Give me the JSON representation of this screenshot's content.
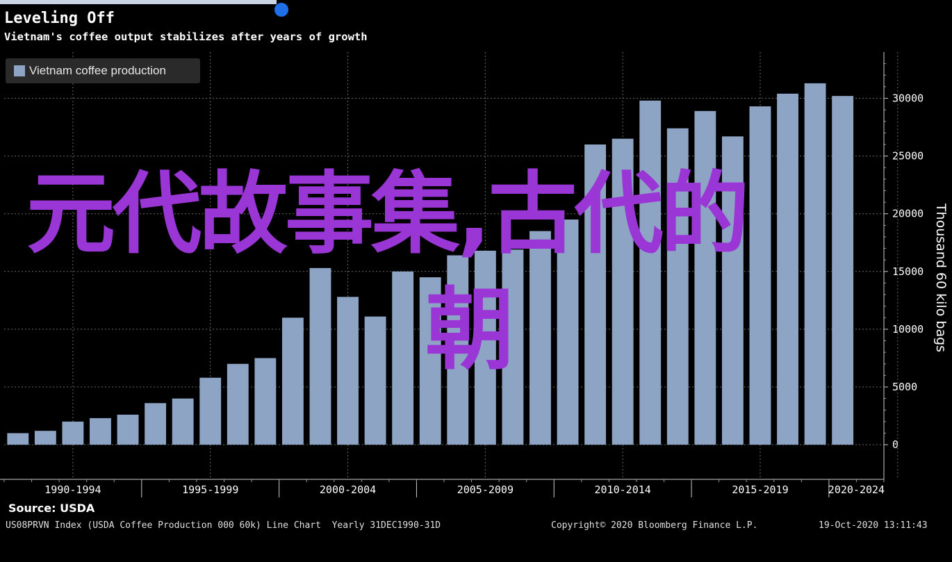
{
  "header": {
    "title": "Leveling Off",
    "subtitle": "Vietnam's coffee output stabilizes after years of growth"
  },
  "legend": {
    "label": "Vietnam coffee production",
    "color": "#8ea4c4"
  },
  "chart_data": {
    "type": "bar",
    "title": "Leveling Off",
    "subtitle": "Vietnam's coffee output stabilizes after years of growth",
    "ylabel": "Thousand 60 kilo bags",
    "ylim": [
      -3000,
      34000
    ],
    "yticks": [
      0,
      5000,
      10000,
      15000,
      20000,
      25000,
      30000
    ],
    "ytick_labels": [
      "0",
      "5000",
      "10000",
      "15000",
      "20000",
      "25000",
      "30000"
    ],
    "x_groups": [
      "1990-1994",
      "1995-1999",
      "2000-2004",
      "2005-2009",
      "2010-2014",
      "2015-2019",
      "2020-2024"
    ],
    "x": [
      1990,
      1991,
      1992,
      1993,
      1994,
      1995,
      1996,
      1997,
      1998,
      1999,
      2000,
      2001,
      2002,
      2003,
      2004,
      2005,
      2006,
      2007,
      2008,
      2009,
      2010,
      2011,
      2012,
      2013,
      2014,
      2015,
      2016,
      2017,
      2018,
      2019,
      2020,
      2021
    ],
    "series": [
      {
        "name": "Vietnam coffee production",
        "values": [
          1000,
          1200,
          2000,
          2300,
          2600,
          3600,
          4000,
          5800,
          7000,
          7500,
          11000,
          15300,
          12800,
          11100,
          15000,
          14500,
          16400,
          16800,
          16900,
          18500,
          19500,
          26000,
          26500,
          29800,
          27400,
          28900,
          26700,
          29300,
          30400,
          31300,
          30200,
          0
        ],
        "color": "#8ea4c4"
      }
    ],
    "grid": true,
    "legend_position": "top-left"
  },
  "overlay_text": {
    "line1": "元代故事集,古代的",
    "line2": "朝"
  },
  "footer": {
    "source": "Source: USDA",
    "index": "US08PRVN Index (USDA Coffee Production 000 60k) Line Chart  Yearly 31DEC1990-31D",
    "copyright": "Copyright© 2020 Bloomberg Finance L.P.",
    "timestamp": "19-Oct-2020 13:11:43"
  }
}
